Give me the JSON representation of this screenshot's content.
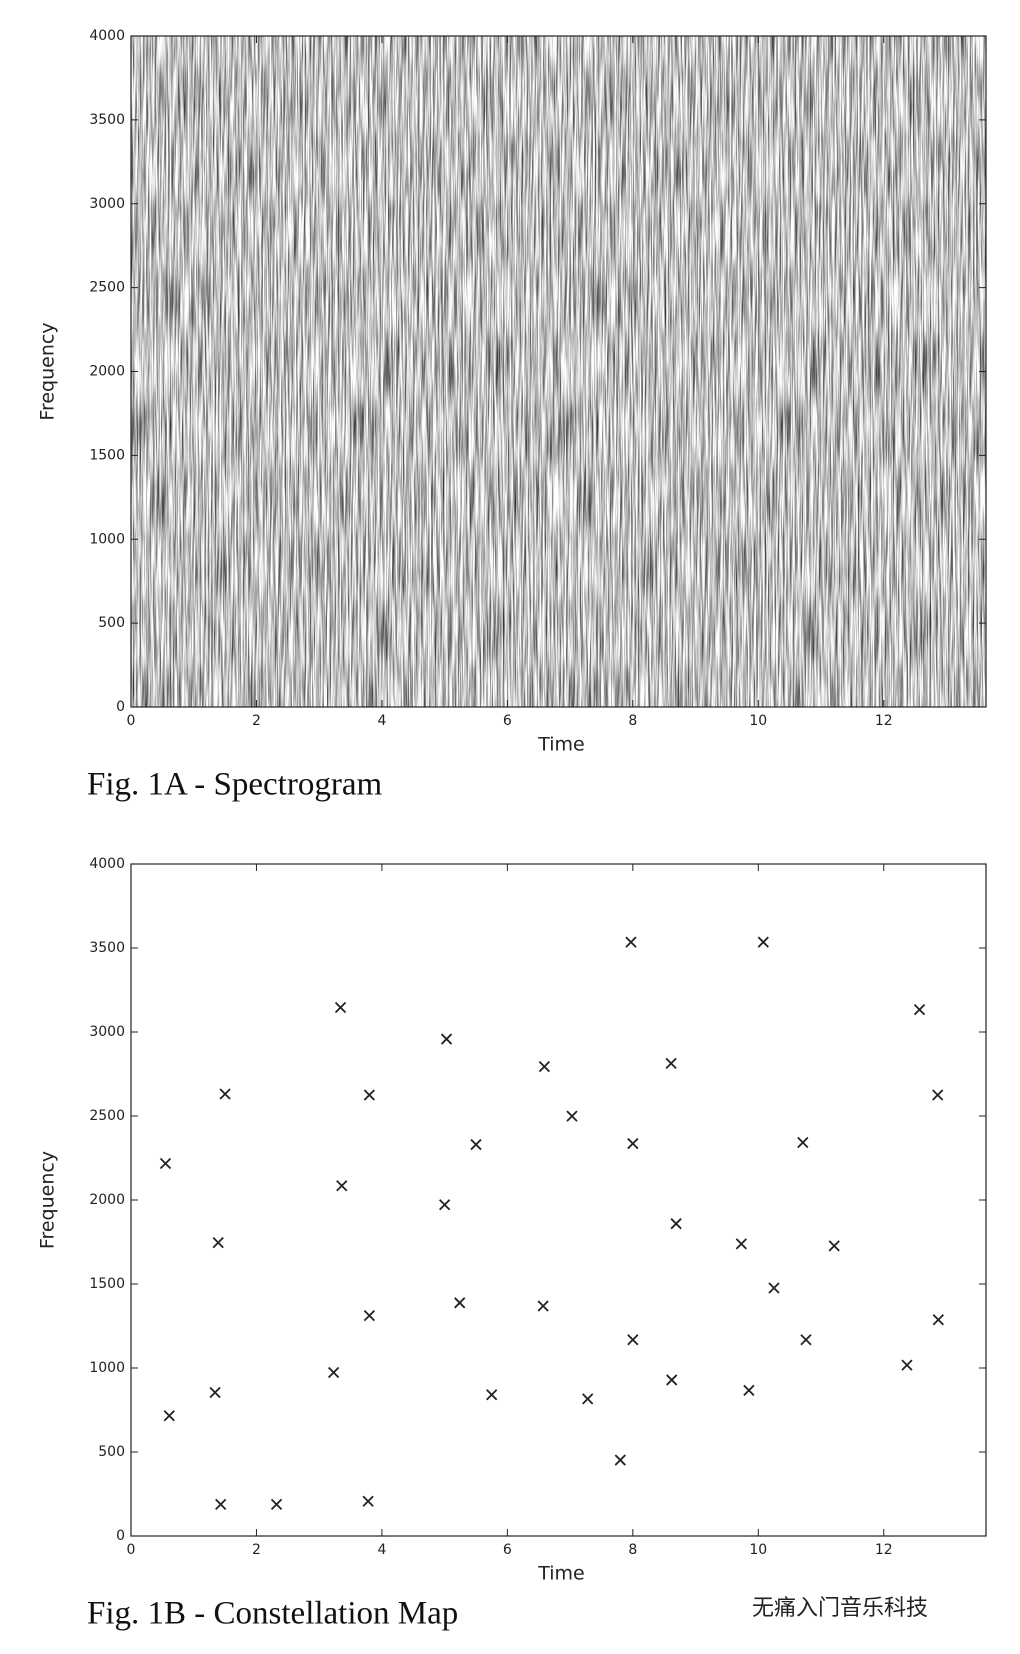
{
  "chart_data": [
    {
      "type": "spectrogram",
      "caption": "Fig. 1A - Spectrogram",
      "xlabel": "Time",
      "ylabel": "Frequency",
      "xlim": [
        0,
        13.63
      ],
      "ylim": [
        0,
        4000
      ],
      "xticks": [
        0,
        2,
        4,
        6,
        8,
        10,
        12
      ],
      "yticks": [
        0,
        500,
        1000,
        1500,
        2000,
        2500,
        3000,
        3500,
        4000
      ]
    },
    {
      "type": "scatter",
      "caption": "Fig. 1B - Constellation Map",
      "xlabel": "Time",
      "ylabel": "Frequency",
      "xlim": [
        0,
        13.63
      ],
      "ylim": [
        0,
        4000
      ],
      "xticks": [
        0,
        2,
        4,
        6,
        8,
        10,
        12
      ],
      "yticks": [
        0,
        500,
        1000,
        1500,
        2000,
        2500,
        3000,
        3500,
        4000
      ],
      "color": "#222222",
      "x": [
        0.55,
        0.61,
        1.5,
        1.39,
        1.34,
        1.43,
        2.32,
        3.34,
        3.8,
        3.36,
        3.8,
        3.23,
        3.78,
        5.03,
        5.5,
        5.0,
        5.24,
        5.75,
        6.59,
        7.03,
        6.57,
        7.28,
        7.8,
        7.97,
        8.0,
        8.0,
        8.61,
        8.69,
        8.62,
        10.08,
        10.71,
        9.73,
        10.25,
        10.76,
        9.85,
        11.21,
        12.57,
        12.86,
        12.87,
        12.37
      ],
      "values": [
        2217,
        716,
        2631,
        1746,
        854,
        188,
        188,
        3146,
        2625,
        2085,
        1312,
        973,
        207,
        2958,
        2330,
        1972,
        1388,
        841,
        2794,
        2499,
        1369,
        816,
        452,
        3535,
        2336,
        1168,
        2813,
        1859,
        929,
        3535,
        2342,
        1739,
        1476,
        1168,
        867,
        1727,
        3133,
        2625,
        1287,
        1017
      ]
    }
  ],
  "watermark": "无痛入门音乐科技"
}
